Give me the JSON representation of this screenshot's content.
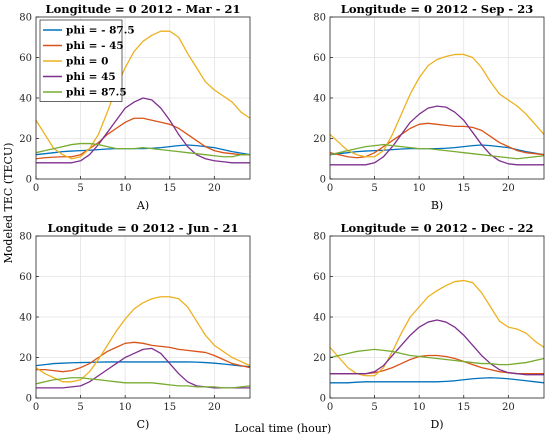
{
  "ylabel": "Modeled TEC (TECU)",
  "xlabel": "Local time (hour)",
  "colors": {
    "phi_-87.5": "#0072BD",
    "phi_-45": "#D95319",
    "phi_0": "#EDB120",
    "phi_45": "#7E2F8E",
    "phi_87.5": "#77AC30"
  },
  "chart_data": [
    {
      "type": "line",
      "title": "Longitude = 0   2012 - Mar - 21",
      "panel_label": "A)",
      "xlim": [
        0,
        24
      ],
      "ylim": [
        0,
        80
      ],
      "xticks": [
        0,
        5,
        10,
        15,
        20
      ],
      "yticks": [
        0,
        20,
        40,
        60,
        80
      ],
      "legend": "top-left",
      "grid": true,
      "x": [
        0,
        1,
        2,
        3,
        4,
        5,
        6,
        7,
        8,
        9,
        10,
        11,
        12,
        13,
        14,
        15,
        16,
        17,
        18,
        19,
        20,
        21,
        22,
        23,
        24
      ],
      "series": [
        {
          "name": "phi = - 87.5",
          "color_key": "phi_-87.5",
          "values": [
            12,
            12.5,
            13,
            13.5,
            13.8,
            14,
            14.2,
            14.5,
            14.8,
            15,
            15,
            15,
            15,
            15.2,
            15.5,
            16,
            16.5,
            16.8,
            16.5,
            16,
            15.5,
            14.5,
            13.5,
            12.8,
            12
          ]
        },
        {
          "name": "phi = - 45",
          "color_key": "phi_-45",
          "values": [
            10,
            10.5,
            10.8,
            11,
            11,
            12,
            15,
            18,
            22,
            25,
            28,
            30,
            30,
            29,
            28,
            27,
            25,
            22,
            19,
            16,
            14,
            13,
            12.5,
            12,
            12
          ]
        },
        {
          "name": "phi = 0",
          "color_key": "phi_0",
          "values": [
            29,
            22,
            15,
            12,
            10,
            11,
            15,
            22,
            33,
            45,
            55,
            63,
            68,
            71,
            73,
            73,
            70,
            62,
            55,
            48,
            44,
            41,
            38,
            33,
            30
          ]
        },
        {
          "name": "phi = 45",
          "color_key": "phi_45",
          "values": [
            8,
            8,
            8,
            8,
            8,
            9,
            12,
            17,
            23,
            29,
            35,
            38,
            40,
            39,
            35,
            29,
            22,
            16,
            12,
            10,
            9,
            8.5,
            8,
            8,
            8
          ]
        },
        {
          "name": "phi = 87.5",
          "color_key": "phi_87.5",
          "values": [
            13,
            14,
            15,
            16,
            17,
            17.5,
            17.5,
            17,
            16,
            15,
            15,
            15,
            15.5,
            15,
            14.5,
            14,
            13.5,
            13,
            12.5,
            12,
            11.5,
            11,
            11,
            12,
            12
          ]
        }
      ]
    },
    {
      "type": "line",
      "title": "Longitude = 0   2012 - Sep - 23",
      "panel_label": "B)",
      "xlim": [
        0,
        24
      ],
      "ylim": [
        0,
        80
      ],
      "xticks": [
        0,
        5,
        10,
        15,
        20
      ],
      "yticks": [
        0,
        20,
        40,
        60,
        80
      ],
      "grid": true,
      "x": [
        0,
        1,
        2,
        3,
        4,
        5,
        6,
        7,
        8,
        9,
        10,
        11,
        12,
        13,
        14,
        15,
        16,
        17,
        18,
        19,
        20,
        21,
        22,
        23,
        24
      ],
      "series": [
        {
          "name": "phi = - 87.5",
          "color_key": "phi_-87.5",
          "values": [
            12,
            12.5,
            13,
            13.5,
            13.8,
            14,
            14.2,
            14.5,
            14.8,
            15,
            15,
            15,
            15,
            15.2,
            15.5,
            16,
            16.5,
            16.8,
            16.5,
            16,
            15.5,
            14.5,
            13.5,
            12.8,
            12
          ]
        },
        {
          "name": "phi = - 45",
          "color_key": "phi_-45",
          "values": [
            13,
            12,
            11,
            10.5,
            11,
            13,
            16,
            19,
            22,
            25,
            27,
            27.5,
            27,
            26.5,
            26,
            26,
            25.5,
            24,
            21,
            18,
            16,
            14,
            13,
            12.5,
            12
          ]
        },
        {
          "name": "phi = 0",
          "color_key": "phi_0",
          "values": [
            22,
            18,
            14,
            12,
            11,
            11,
            14,
            22,
            32,
            42,
            50,
            56,
            59,
            60.5,
            61.5,
            61.5,
            60,
            55,
            48,
            42,
            39,
            36,
            32,
            27,
            22
          ]
        },
        {
          "name": "phi = 45",
          "color_key": "phi_45",
          "values": [
            7,
            7,
            7,
            7,
            7,
            8,
            11,
            16,
            22,
            28,
            32,
            35,
            36,
            35.5,
            33,
            29,
            23,
            17,
            12,
            9,
            7.5,
            7,
            7,
            7,
            7
          ]
        },
        {
          "name": "phi = 87.5",
          "color_key": "phi_87.5",
          "values": [
            12,
            13,
            14,
            15,
            16,
            16.5,
            17,
            16.5,
            16,
            15.5,
            15,
            15,
            14.5,
            14,
            13.5,
            13,
            12.5,
            12,
            11.5,
            11,
            10.5,
            10,
            10.5,
            11,
            11.5
          ]
        }
      ]
    },
    {
      "type": "line",
      "title": "Longitude = 0   2012 - Jun - 21",
      "panel_label": "C)",
      "xlim": [
        0,
        24
      ],
      "ylim": [
        0,
        80
      ],
      "xticks": [
        0,
        5,
        10,
        15,
        20
      ],
      "yticks": [
        0,
        20,
        40,
        60,
        80
      ],
      "grid": true,
      "x": [
        0,
        1,
        2,
        3,
        4,
        5,
        6,
        7,
        8,
        9,
        10,
        11,
        12,
        13,
        14,
        15,
        16,
        17,
        18,
        19,
        20,
        21,
        22,
        23,
        24
      ],
      "series": [
        {
          "name": "phi = - 87.5",
          "color_key": "phi_-87.5",
          "values": [
            16,
            16.5,
            17,
            17.2,
            17.4,
            17.5,
            17.6,
            17.7,
            17.8,
            17.8,
            17.8,
            17.8,
            17.8,
            17.8,
            17.8,
            17.8,
            17.8,
            17.8,
            17.7,
            17.5,
            17.2,
            16.8,
            16.3,
            15.8,
            15.5
          ]
        },
        {
          "name": "phi = - 45",
          "color_key": "phi_-45",
          "values": [
            14,
            14,
            13.5,
            13,
            13.5,
            15,
            17,
            20,
            23,
            25,
            27,
            27.5,
            27,
            26,
            25.5,
            25,
            24,
            23.5,
            23,
            22.5,
            21,
            19,
            17,
            16,
            15
          ]
        },
        {
          "name": "phi = 0",
          "color_key": "phi_0",
          "values": [
            15,
            12,
            10,
            8,
            8,
            9,
            13,
            19,
            26,
            33,
            39,
            44,
            47,
            49,
            50,
            50,
            49,
            45,
            38,
            31,
            26,
            23,
            20,
            18,
            16
          ]
        },
        {
          "name": "phi = 45",
          "color_key": "phi_45",
          "values": [
            5,
            5,
            5,
            5,
            5.5,
            6,
            8,
            11,
            14,
            17,
            20,
            22,
            24,
            24.5,
            22,
            17,
            12,
            8,
            6,
            5.5,
            5,
            5,
            5,
            5,
            5
          ]
        },
        {
          "name": "phi = 87.5",
          "color_key": "phi_87.5",
          "values": [
            7,
            8,
            9,
            9.5,
            10,
            10,
            9.5,
            9,
            8.5,
            8,
            7.5,
            7.5,
            7.5,
            7.5,
            7,
            6.5,
            6,
            6,
            5.5,
            5.5,
            5.5,
            5,
            5,
            5.5,
            6
          ]
        }
      ]
    },
    {
      "type": "line",
      "title": "Longitude = 0   2012 - Dec - 22",
      "panel_label": "D)",
      "xlim": [
        0,
        24
      ],
      "ylim": [
        0,
        80
      ],
      "xticks": [
        0,
        5,
        10,
        15,
        20
      ],
      "yticks": [
        0,
        20,
        40,
        60,
        80
      ],
      "grid": true,
      "x": [
        0,
        1,
        2,
        3,
        4,
        5,
        6,
        7,
        8,
        9,
        10,
        11,
        12,
        13,
        14,
        15,
        16,
        17,
        18,
        19,
        20,
        21,
        22,
        23,
        24
      ],
      "series": [
        {
          "name": "phi = - 87.5",
          "color_key": "phi_-87.5",
          "values": [
            7.5,
            7.5,
            7.5,
            7.8,
            8,
            8,
            8,
            8,
            8,
            8,
            8,
            8,
            8,
            8.2,
            8.5,
            9,
            9.5,
            9.8,
            10,
            9.8,
            9.5,
            9,
            8.5,
            8,
            7.5
          ]
        },
        {
          "name": "phi = - 45",
          "color_key": "phi_-45",
          "values": [
            12,
            12,
            12,
            12,
            12,
            12.5,
            13.5,
            15,
            17,
            19,
            20.5,
            21,
            21,
            20.5,
            19.5,
            18,
            16.5,
            15,
            14,
            13,
            12.5,
            12,
            12,
            12,
            12
          ]
        },
        {
          "name": "phi = 0",
          "color_key": "phi_0",
          "values": [
            25,
            20,
            15,
            12,
            11,
            11,
            15,
            23,
            32,
            40,
            45,
            50,
            53,
            55.5,
            57.5,
            58,
            57,
            52,
            45,
            38,
            35,
            34,
            32,
            28,
            25
          ]
        },
        {
          "name": "phi = 45",
          "color_key": "phi_45",
          "values": [
            12,
            12,
            12,
            12,
            12,
            13,
            16,
            21,
            26,
            31,
            35,
            37.5,
            38.5,
            37.5,
            35,
            31,
            26,
            21,
            17,
            14,
            12.5,
            12,
            11.5,
            11.5,
            11.5
          ]
        },
        {
          "name": "phi = 87.5",
          "color_key": "phi_87.5",
          "values": [
            20,
            21,
            22,
            23,
            23.5,
            24,
            23.5,
            23,
            22,
            21,
            20.5,
            20,
            19.5,
            19,
            18.5,
            18,
            17.5,
            17,
            17,
            16.5,
            16.5,
            17,
            17.5,
            18.5,
            19.5
          ]
        }
      ]
    }
  ]
}
